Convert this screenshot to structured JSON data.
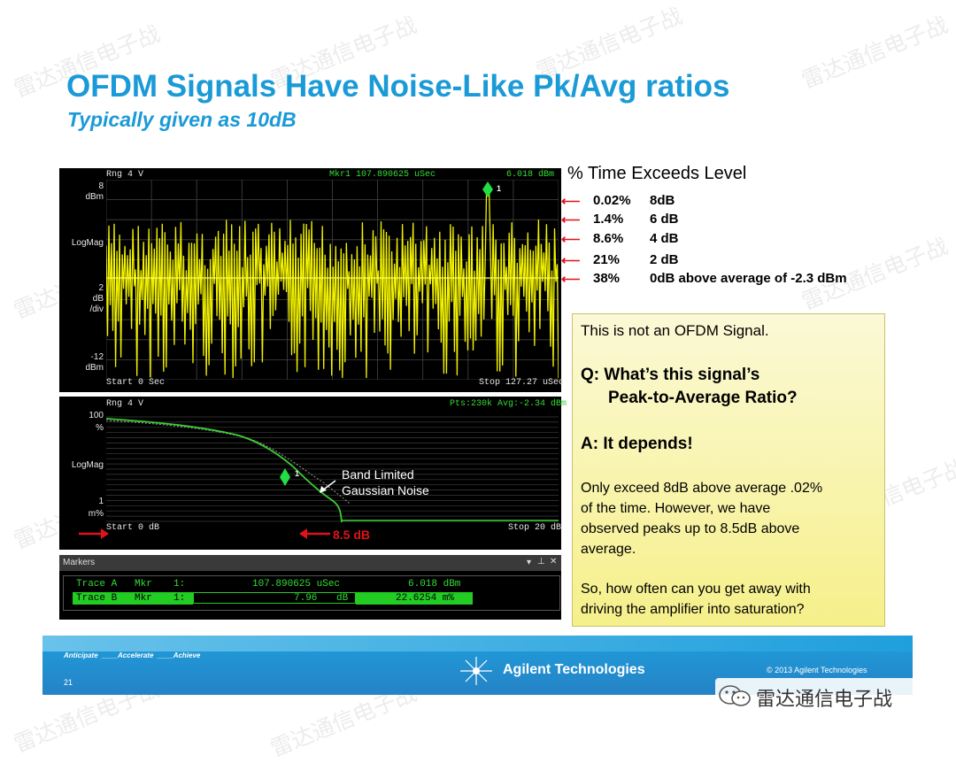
{
  "slide": {
    "title": "OFDM Signals Have Noise-Like Pk/Avg ratios",
    "subtitle": "Typically given as 10dB",
    "page_number": "21"
  },
  "watermark": {
    "text": "雷达通信电子战"
  },
  "top_plot": {
    "range_label": "Rng 4  V",
    "marker_readout": "Mkr1  107.890625 uSec",
    "marker_value": "6.018 dBm",
    "y_top": "8",
    "y_top_unit": "dBm",
    "scale_mode": "LogMag",
    "scale_div": "2",
    "scale_div_unit": "dB",
    "scale_div_suffix": "/div",
    "y_bottom": "-12",
    "y_bottom_unit": "dBm",
    "start_label": "Start 0  Sec",
    "stop_label": "Stop 127.27 uSec",
    "marker_id": "1",
    "trace_color": "#f2f200",
    "reference_color": "#ffff66"
  },
  "bottom_plot": {
    "range_label": "Rng 4  V",
    "points_readout": "Pts:230k Avg:-2.34 dBm",
    "y_top": "100",
    "y_top_unit": "%",
    "scale_mode": "LogMag",
    "y_bottom": "1",
    "y_bottom_unit": "m%",
    "start_label": "Start 0 dB",
    "stop_label": "Stop 20 dB",
    "marker_id": "1",
    "callout": "Band Limited\nGaussian Noise",
    "callout_line1": "Band Limited",
    "callout_line2": "Gaussian Noise",
    "marker_label": "8.5 dB",
    "trace_color": "#3ccd32"
  },
  "annotations": {
    "header": "% Time Exceeds Level",
    "rows": [
      {
        "pct": "0.02%",
        "level": "8dB"
      },
      {
        "pct": "1.4%",
        "level": "6 dB"
      },
      {
        "pct": "8.6%",
        "level": "4 dB"
      },
      {
        "pct": "21%",
        "level": "2 dB"
      },
      {
        "pct": "38%",
        "level": "0dB above average of -2.3 dBm"
      }
    ],
    "arrow_color": "#e0121a"
  },
  "question_box": {
    "line1": "This is not an OFDM Signal.",
    "q_line1": "Q: What’s this signal’s",
    "q_line2": "Peak-to-Average Ratio?",
    "answer": "A:  It depends!",
    "p1_line1": "Only exceed 8dB above average  .02%",
    "p1_line2": "of the time.  However, we have",
    "p1_line3": "observed peaks up to 8.5dB above",
    "p1_line4": "average.",
    "p2_line1": "So, how often can you get away with",
    "p2_line2": "driving the amplifier into saturation?"
  },
  "markers_panel": {
    "title": "Markers",
    "pin_icon": "pin-icon",
    "close_icon": "close-icon",
    "rows": [
      {
        "trace": "Trace A",
        "type": "Mkr",
        "id": "1:",
        "x": "107.890625 uSec",
        "y": "6.018 dBm"
      },
      {
        "trace": "Trace B",
        "type": "Mkr",
        "id": "1:",
        "x": "7.96",
        "x_unit": "dB",
        "y": "22.6254 m%"
      }
    ]
  },
  "footer": {
    "tagline_1": "Anticipate",
    "tagline_2": "Accelerate",
    "tagline_3": "Achieve",
    "brand": "Agilent Technologies",
    "copyright": "© 2013 Agilent Technologies",
    "wechat_handle": "雷达通信电子战"
  },
  "colors": {
    "title_blue": "#1a9ad6",
    "footer_blue": "#1f9fdc"
  }
}
